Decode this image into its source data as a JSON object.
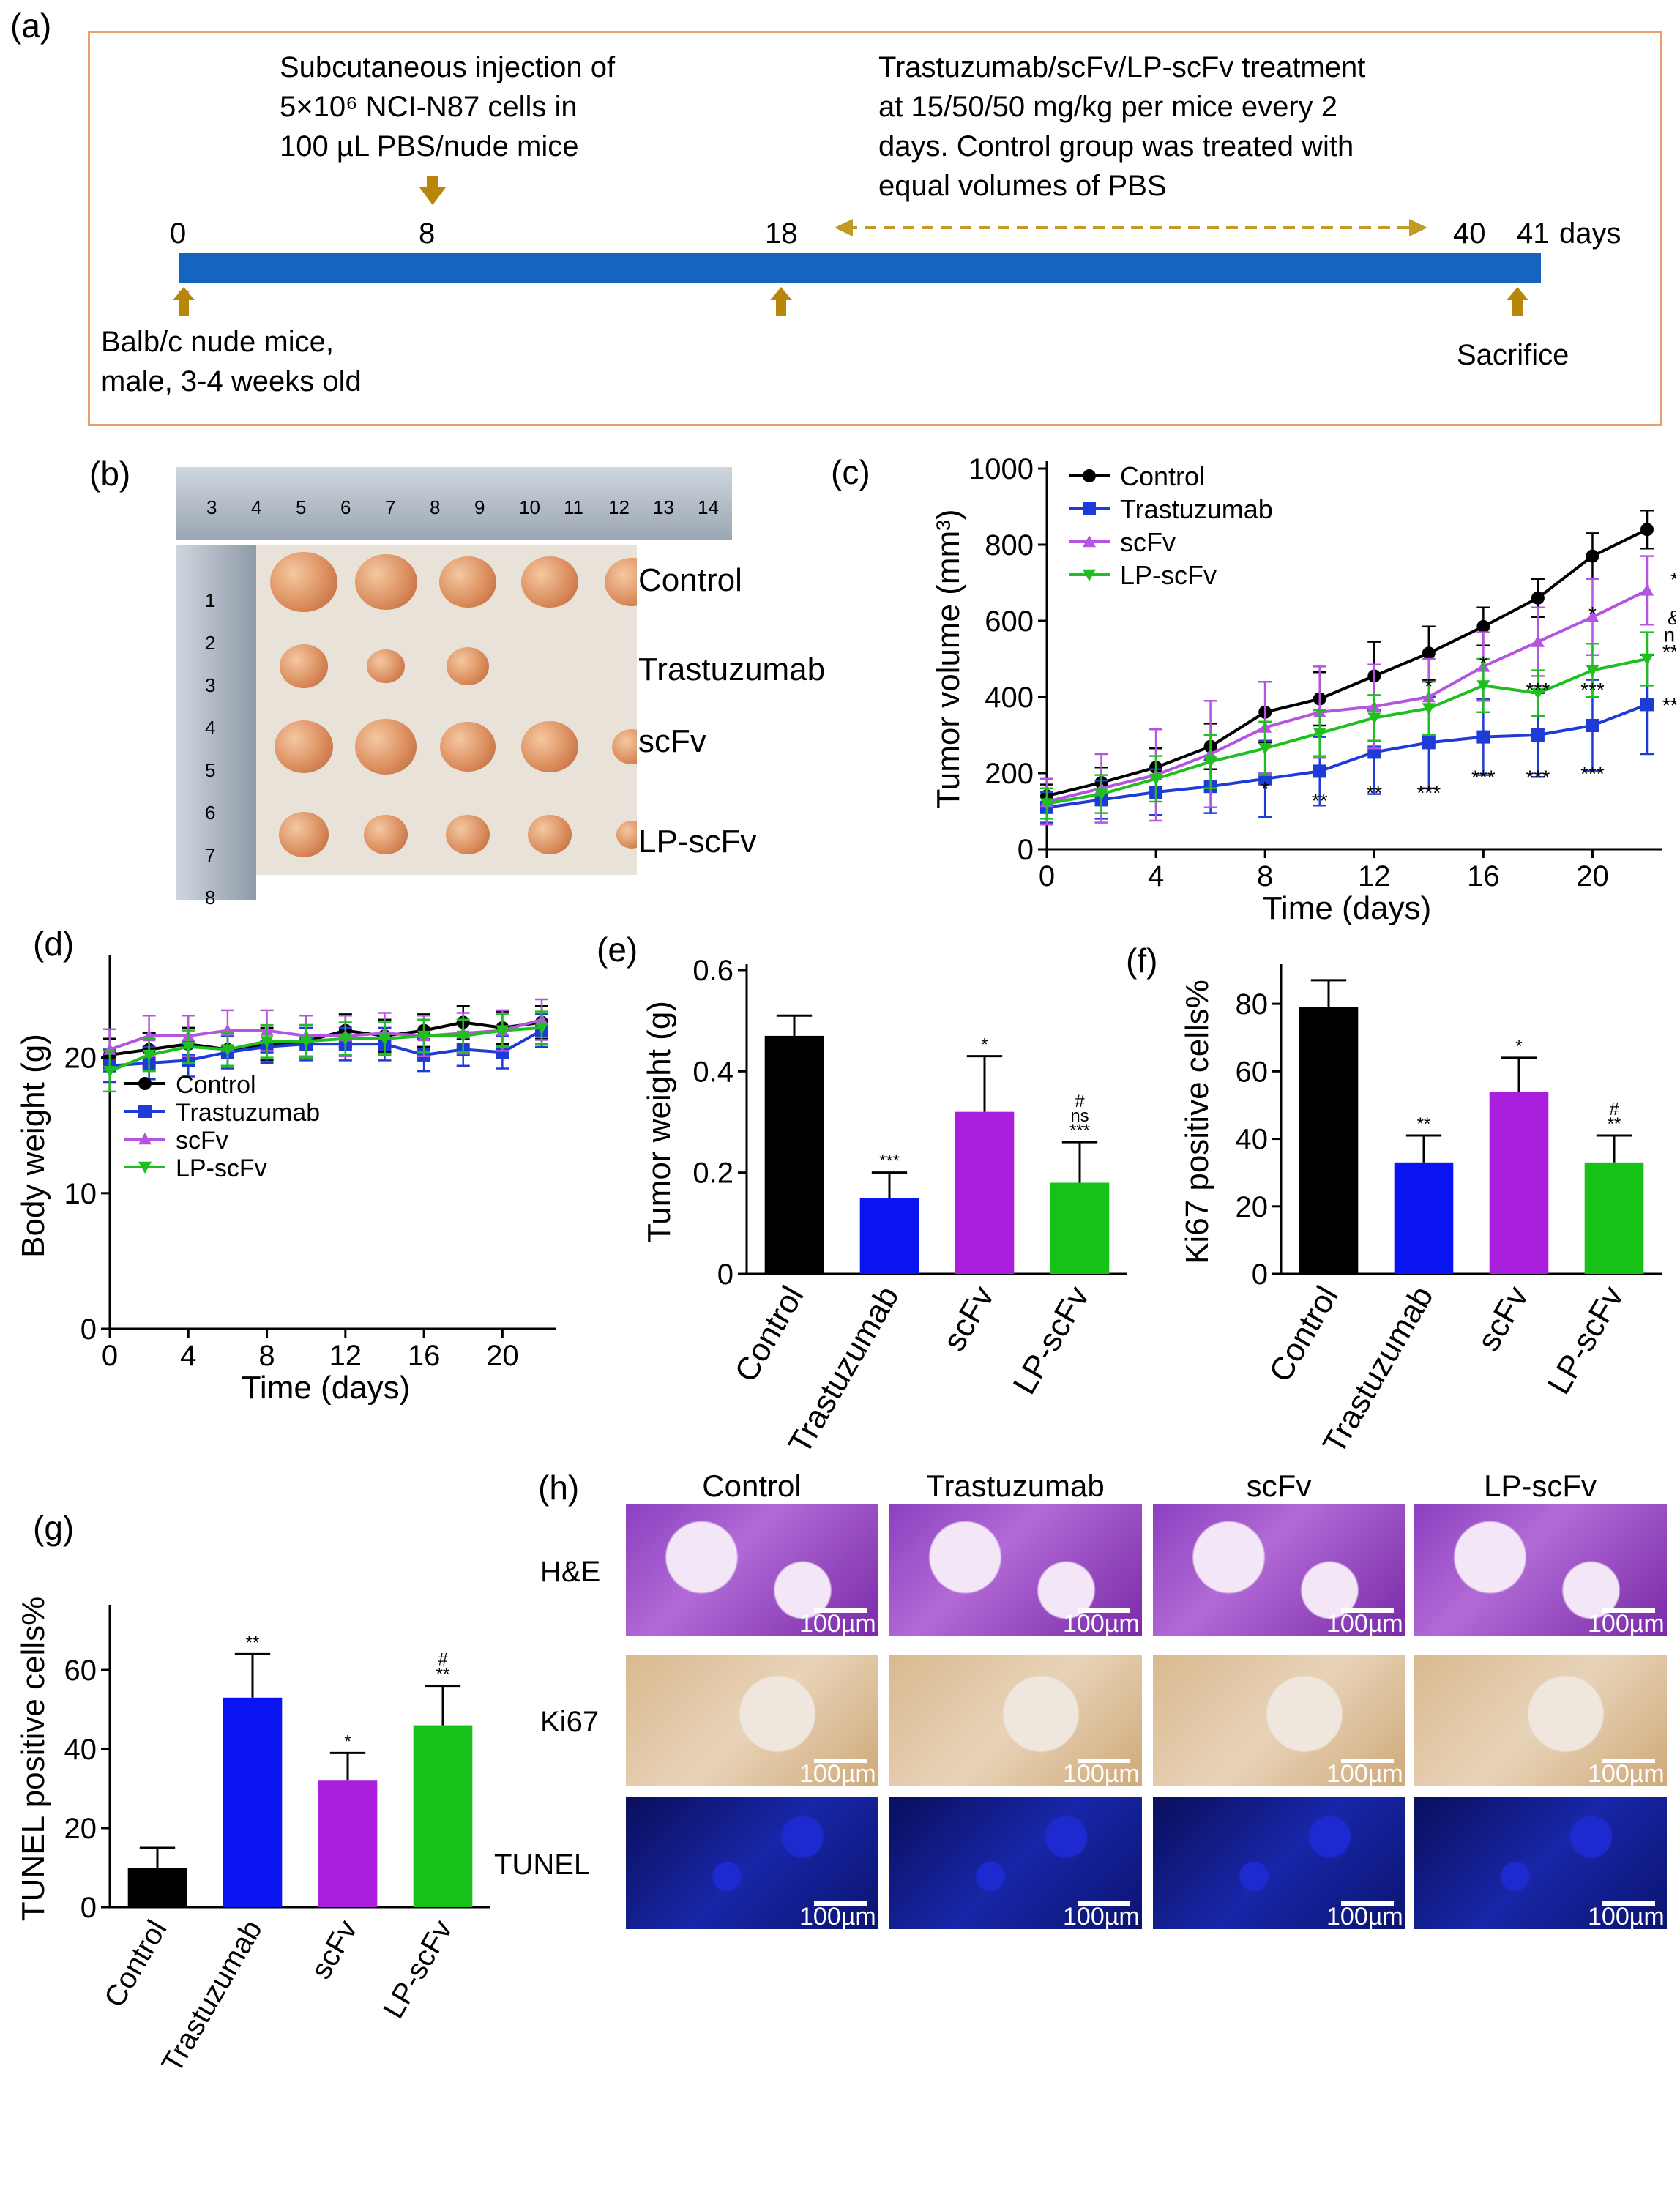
{
  "panel_a": {
    "label": "(a)",
    "injection_text": [
      "Subcutaneous injection of",
      "5×10⁶ NCI-N87 cells in",
      "100 µL PBS/nude mice"
    ],
    "treatment_text": [
      "Trastuzumab/scFv/LP-scFv  treatment",
      "at 15/50/50 mg/kg per mice every 2",
      "days. Control group was treated with",
      "equal volumes of PBS"
    ],
    "ticks": [
      "0",
      "8",
      "18",
      "40",
      "41"
    ],
    "unit": "days",
    "start_text": [
      "Balb/c nude mice,",
      "male, 3-4 weeks old"
    ],
    "end_text": "Sacrifice",
    "colors": {
      "bar": "#1565c0",
      "arrow": "#b8860b",
      "border": "#e8a070"
    }
  },
  "panel_b": {
    "label": "(b)",
    "rows": [
      "Control",
      "Trastuzumab",
      "scFv",
      "LP-scFv"
    ],
    "tumor_counts": [
      5,
      3,
      5,
      5
    ],
    "ruler_numbers": [
      "3",
      "4",
      "5",
      "6",
      "7",
      "8",
      "9",
      "10",
      "11",
      "12",
      "13",
      "14"
    ],
    "ruler_v_numbers": [
      "1",
      "2",
      "3",
      "4",
      "5",
      "6",
      "7",
      "8"
    ]
  },
  "panel_h": {
    "label": "(h)",
    "columns": [
      "Control",
      "Trastuzumab",
      "scFv",
      "LP-scFv"
    ],
    "rows": [
      "H&E",
      "Ki67",
      "TUNEL"
    ],
    "scale": "100µm"
  },
  "chart_data": [
    {
      "id": "c",
      "type": "line",
      "label": "(c)",
      "xlabel": "Time (days)",
      "ylabel": "Tumor volume (mm³)",
      "xlim": [
        0,
        22
      ],
      "ylim": [
        0,
        1000
      ],
      "xticks": [
        0,
        4,
        8,
        12,
        16,
        20
      ],
      "yticks": [
        0,
        200,
        400,
        600,
        800,
        1000
      ],
      "x": [
        0,
        2,
        4,
        6,
        8,
        10,
        12,
        14,
        16,
        18,
        20,
        22
      ],
      "series": [
        {
          "name": "Control",
          "color": "#000000",
          "marker": "circle",
          "values": [
            140,
            175,
            215,
            270,
            360,
            395,
            455,
            515,
            585,
            660,
            770,
            840
          ],
          "errors": [
            30,
            40,
            50,
            60,
            80,
            70,
            90,
            70,
            50,
            50,
            60,
            50
          ]
        },
        {
          "name": "Trastuzumab",
          "color": "#1f3bd6",
          "marker": "square",
          "values": [
            110,
            130,
            150,
            165,
            185,
            205,
            255,
            280,
            295,
            300,
            325,
            380
          ],
          "errors": [
            40,
            50,
            60,
            70,
            100,
            90,
            110,
            120,
            100,
            110,
            120,
            130
          ]
        },
        {
          "name": "scFv",
          "color": "#b455e0",
          "marker": "triangle-up",
          "values": [
            125,
            160,
            195,
            250,
            320,
            360,
            375,
            400,
            480,
            545,
            610,
            680
          ],
          "errors": [
            60,
            90,
            120,
            140,
            120,
            120,
            110,
            100,
            90,
            90,
            100,
            90
          ]
        },
        {
          "name": "LP-scFv",
          "color": "#1fbf1f",
          "marker": "triangle-down",
          "values": [
            120,
            145,
            185,
            230,
            265,
            305,
            345,
            370,
            430,
            410,
            470,
            500
          ],
          "errors": [
            40,
            50,
            60,
            70,
            70,
            60,
            60,
            70,
            70,
            60,
            70,
            70
          ]
        }
      ],
      "annotations": [
        {
          "text": "*",
          "x": 8,
          "y": 140,
          "color": "#000"
        },
        {
          "text": "**",
          "x": 10,
          "y": 110,
          "color": "#000"
        },
        {
          "text": "**",
          "x": 12,
          "y": 130,
          "color": "#000"
        },
        {
          "text": "***",
          "x": 14,
          "y": 130,
          "color": "#000"
        },
        {
          "text": "***",
          "x": 16,
          "y": 170,
          "color": "#000"
        },
        {
          "text": "***",
          "x": 18,
          "y": 170,
          "color": "#000"
        },
        {
          "text": "***",
          "x": 20,
          "y": 180,
          "color": "#000"
        },
        {
          "text": "*",
          "x": 14,
          "y": 410,
          "color": "#000"
        },
        {
          "text": "*",
          "x": 16,
          "y": 470,
          "color": "#000"
        },
        {
          "text": "***",
          "x": 18,
          "y": 400,
          "color": "#000"
        },
        {
          "text": "***",
          "x": 20,
          "y": 400,
          "color": "#000"
        },
        {
          "text": "*",
          "x": 20,
          "y": 600,
          "color": "#000"
        },
        {
          "text": "*",
          "x": 23,
          "y": 690,
          "color": "#000"
        },
        {
          "text": "&",
          "x": 23,
          "y": 590,
          "color": "#000"
        },
        {
          "text": "ns",
          "x": 23,
          "y": 545,
          "color": "#000"
        },
        {
          "text": "***",
          "x": 23,
          "y": 500,
          "color": "#000"
        },
        {
          "text": "***",
          "x": 23,
          "y": 360,
          "color": "#000"
        }
      ]
    },
    {
      "id": "d",
      "type": "line",
      "label": "(d)",
      "xlabel": "Time (days)",
      "ylabel": "Body weight (g)",
      "xlim": [
        0,
        22
      ],
      "ylim": [
        0,
        27
      ],
      "xticks": [
        0,
        4,
        8,
        12,
        16,
        20
      ],
      "yticks": [
        0,
        10,
        20
      ],
      "x": [
        0,
        2,
        4,
        6,
        8,
        10,
        12,
        14,
        16,
        18,
        20,
        22
      ],
      "series": [
        {
          "name": "Control",
          "color": "#000000",
          "marker": "circle",
          "values": [
            20.2,
            20.6,
            21.0,
            20.6,
            21.0,
            21.2,
            22.0,
            21.6,
            22.0,
            22.6,
            22.2,
            22.6
          ],
          "errors": [
            1.2,
            1.2,
            1.2,
            1.2,
            1.2,
            1.2,
            1.2,
            1.2,
            1.2,
            1.2,
            1.2,
            1.2
          ]
        },
        {
          "name": "Trastuzumab",
          "color": "#1f3bd6",
          "marker": "square",
          "values": [
            19.4,
            19.6,
            19.8,
            20.4,
            20.8,
            21.0,
            21.0,
            21.0,
            20.2,
            20.6,
            20.4,
            22.0
          ],
          "errors": [
            1.2,
            1.2,
            1.2,
            1.2,
            1.2,
            1.2,
            1.2,
            1.2,
            1.2,
            1.2,
            1.2,
            1.2
          ]
        },
        {
          "name": "scFv",
          "color": "#b455e0",
          "marker": "triangle-up",
          "values": [
            20.6,
            21.6,
            21.6,
            22.0,
            22.0,
            21.6,
            21.6,
            21.8,
            21.6,
            21.8,
            22.0,
            22.8
          ],
          "errors": [
            1.5,
            1.5,
            1.5,
            1.5,
            1.5,
            1.5,
            1.5,
            1.5,
            1.5,
            1.5,
            1.5,
            1.5
          ]
        },
        {
          "name": "LP-scFv",
          "color": "#1fbf1f",
          "marker": "triangle-down",
          "values": [
            19.0,
            20.2,
            20.8,
            20.6,
            21.2,
            21.2,
            21.4,
            21.4,
            21.6,
            21.6,
            22.0,
            22.2
          ],
          "errors": [
            1.5,
            1.2,
            1.2,
            1.2,
            1.2,
            1.2,
            1.2,
            1.2,
            1.2,
            1.2,
            1.2,
            1.2
          ]
        }
      ]
    },
    {
      "id": "e",
      "type": "bar",
      "label": "(e)",
      "ylabel": "Tumor weight (g)",
      "ylim": [
        0,
        0.6
      ],
      "yticks": [
        0,
        0.2,
        0.4,
        0.6
      ],
      "ytick_labels": [
        "0",
        "0.2",
        "0.4",
        "0.6"
      ],
      "categories": [
        "Control",
        "Trastuzumab",
        "scFv",
        "LP-scFv"
      ],
      "values": [
        0.47,
        0.15,
        0.32,
        0.18
      ],
      "errors": [
        0.04,
        0.05,
        0.11,
        0.08
      ],
      "colors": [
        "#000000",
        "#0a14f0",
        "#a91fdc",
        "#17c117"
      ],
      "sig": [
        [],
        [
          "***"
        ],
        [
          "*"
        ],
        [
          "#",
          "ns",
          "***"
        ]
      ]
    },
    {
      "id": "f",
      "type": "bar",
      "label": "(f)",
      "ylabel": "Ki67 positive cells%",
      "ylim": [
        0,
        90
      ],
      "yticks": [
        0,
        20,
        40,
        60,
        80
      ],
      "ytick_labels": [
        "0",
        "20",
        "40",
        "60",
        "80"
      ],
      "categories": [
        "Control",
        "Trastuzumab",
        "scFv",
        "LP-scFv"
      ],
      "values": [
        79,
        33,
        54,
        33
      ],
      "errors": [
        8,
        8,
        10,
        8
      ],
      "colors": [
        "#000000",
        "#0a14f0",
        "#a91fdc",
        "#17c117"
      ],
      "sig": [
        [],
        [
          "**"
        ],
        [
          "*"
        ],
        [
          "#",
          "**"
        ]
      ]
    },
    {
      "id": "g",
      "type": "bar",
      "label": "(g)",
      "ylabel": "TUNEL positive cells%",
      "ylim": [
        0,
        75
      ],
      "yticks": [
        0,
        20,
        40,
        60
      ],
      "ytick_labels": [
        "0",
        "20",
        "40",
        "60"
      ],
      "categories": [
        "Control",
        "Trastuzumab",
        "scFv",
        "LP-scFv"
      ],
      "values": [
        10,
        53,
        32,
        46
      ],
      "errors": [
        5,
        11,
        7,
        10
      ],
      "colors": [
        "#000000",
        "#0a14f0",
        "#a91fdc",
        "#17c117"
      ],
      "sig": [
        [],
        [
          "**"
        ],
        [
          "*"
        ],
        [
          "#",
          "**"
        ]
      ]
    }
  ]
}
